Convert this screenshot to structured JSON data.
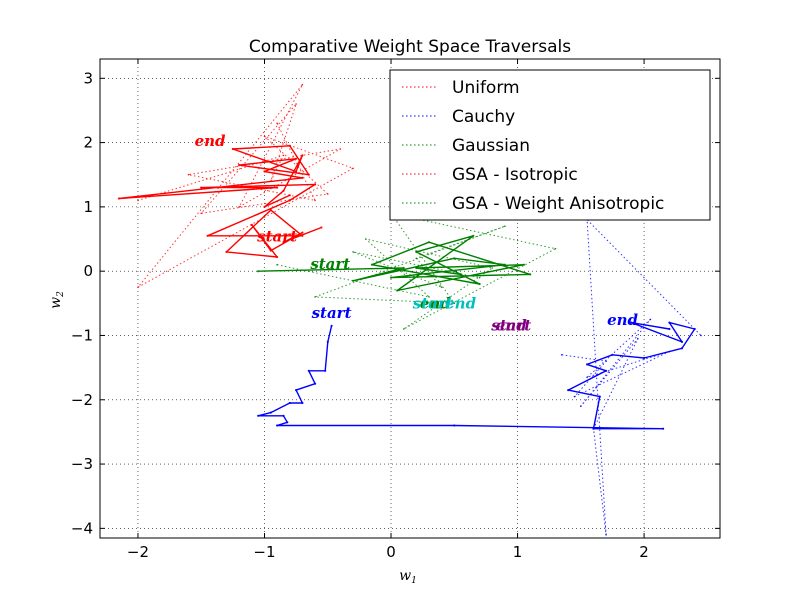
{
  "chart_data": {
    "type": "line",
    "title": "Comparative Weight Space Traversals",
    "xlabel": "w",
    "xlabel_sub": "1",
    "ylabel": "w",
    "ylabel_sub": "2",
    "xlim": [
      -2.3,
      2.6
    ],
    "ylim": [
      -4.15,
      3.3
    ],
    "xticks": [
      -2,
      -1,
      0,
      1,
      2
    ],
    "yticks": [
      -4,
      -3,
      -2,
      -1,
      0,
      1,
      2,
      3
    ],
    "grid": true,
    "grid_style": "dotted",
    "legend_position": "top-right",
    "legend": [
      {
        "label": "Uniform",
        "color": "#ff0000"
      },
      {
        "label": "Cauchy",
        "color": "#0000ff"
      },
      {
        "label": "Gaussian",
        "color": "#008000"
      },
      {
        "label": "GSA - Isotropic",
        "color": "#ff0000"
      },
      {
        "label": "GSA - Weight Anisotropic",
        "color": "#008000"
      }
    ],
    "annotations": [
      {
        "text": "end",
        "x": -1.43,
        "y": 1.95,
        "color": "#ff0000"
      },
      {
        "text": "start",
        "x": -0.9,
        "y": 0.46,
        "color": "#ff0000"
      },
      {
        "text": "start",
        "x": -0.48,
        "y": 0.03,
        "color": "#008000"
      },
      {
        "text": "end",
        "x": 0.35,
        "y": -0.58,
        "color": "#008000"
      },
      {
        "text": "start",
        "x": 0.33,
        "y": -0.58,
        "color": "#00bfbf"
      },
      {
        "text": "end",
        "x": 0.55,
        "y": -0.58,
        "color": "#00bfbf"
      },
      {
        "text": "start",
        "x": -0.47,
        "y": -0.73,
        "color": "#0000ff"
      },
      {
        "text": "end",
        "x": 1.83,
        "y": -0.84,
        "color": "#0000ff"
      },
      {
        "text": "start",
        "x": 0.95,
        "y": -0.92,
        "color": "#800080"
      },
      {
        "text": "end",
        "x": 0.95,
        "y": -0.92,
        "color": "#800080"
      }
    ],
    "series": [
      {
        "style": "solid",
        "color": "#ff0000",
        "x": [
          -0.55,
          -0.85,
          -0.7,
          -0.95,
          -1.1,
          -0.9,
          -1.3,
          -0.95,
          -0.7,
          -1.45,
          -0.8,
          -0.6,
          -1.5,
          -0.9,
          -2.15,
          -0.7,
          -1.0,
          -0.75,
          -1.2,
          -0.65,
          -0.8,
          -1.25,
          -0.75,
          -0.7,
          -0.85,
          -1.0,
          -0.8
        ],
        "y": [
          0.68,
          0.45,
          0.6,
          0.32,
          0.72,
          0.22,
          0.3,
          0.95,
          0.55,
          0.55,
          1.1,
          1.35,
          1.3,
          1.3,
          1.13,
          1.45,
          1.55,
          1.75,
          1.65,
          1.5,
          1.95,
          1.9,
          1.55,
          1.8,
          1.25,
          1.0,
          1.18
        ]
      },
      {
        "style": "dotted",
        "color": "#ff0000",
        "x": [
          -0.9,
          -0.6,
          -1.6,
          -0.4,
          -1.2,
          -0.7,
          -2.0,
          -0.3,
          -1.0,
          -0.5,
          -1.5,
          -0.75,
          -0.95,
          -0.85,
          -2.0
        ],
        "y": [
          2.3,
          1.1,
          1.5,
          1.9,
          1.0,
          2.9,
          -0.25,
          1.6,
          2.1,
          1.2,
          0.9,
          2.6,
          1.4,
          1.8,
          1.1
        ]
      },
      {
        "style": "solid",
        "color": "#008000",
        "x": [
          -1.05,
          0.1,
          -0.3,
          0.5,
          0.9,
          0.0,
          1.1,
          0.3,
          -0.15,
          0.7,
          0.2,
          0.65,
          0.05,
          1.05,
          0.2,
          0.55
        ],
        "y": [
          0.0,
          0.05,
          -0.15,
          0.2,
          0.1,
          -0.1,
          -0.05,
          0.45,
          0.1,
          -0.2,
          0.3,
          0.55,
          -0.3,
          0.1,
          0.05,
          -0.05
        ]
      },
      {
        "style": "dotted",
        "color": "#008000",
        "x": [
          -0.9,
          0.3,
          -0.2,
          0.8,
          0.1,
          1.3,
          0.0,
          0.5,
          -0.6,
          0.9,
          0.2,
          0.4,
          -0.3,
          0.7
        ],
        "y": [
          0.1,
          -0.4,
          0.5,
          0.05,
          -0.9,
          0.35,
          0.9,
          -0.5,
          -0.4,
          0.7,
          0.2,
          -0.25,
          0.3,
          -0.1
        ]
      },
      {
        "style": "solid",
        "color": "#0000ff",
        "x": [
          -0.47,
          -0.5,
          -0.52,
          -0.65,
          -0.6,
          -0.75,
          -0.7,
          -0.8,
          -0.95,
          -1.05,
          -0.85,
          -0.82,
          -0.9,
          0.5,
          2.15,
          1.6,
          1.65,
          1.4,
          1.7,
          1.55,
          1.75,
          2.0,
          2.3,
          2.4,
          2.2,
          2.3,
          1.9,
          2.2
        ],
        "y": [
          -0.85,
          -1.1,
          -1.55,
          -1.55,
          -1.75,
          -1.85,
          -2.05,
          -2.05,
          -2.2,
          -2.25,
          -2.25,
          -2.35,
          -2.4,
          -2.4,
          -2.45,
          -2.45,
          -1.95,
          -1.85,
          -1.55,
          -1.45,
          -1.3,
          -1.35,
          -1.2,
          -0.9,
          -0.8,
          -1.1,
          -0.8,
          -0.9
        ]
      },
      {
        "style": "dotted",
        "color": "#0000ff",
        "x": [
          1.35,
          1.7,
          1.45,
          2.2,
          1.55,
          2.05,
          1.5,
          1.95,
          1.6,
          1.7,
          1.55,
          2.45
        ],
        "y": [
          -1.3,
          -1.4,
          -1.95,
          -1.25,
          -1.65,
          -0.75,
          -2.1,
          -1.05,
          -2.45,
          -4.1,
          0.8,
          -1.0
        ]
      }
    ]
  }
}
